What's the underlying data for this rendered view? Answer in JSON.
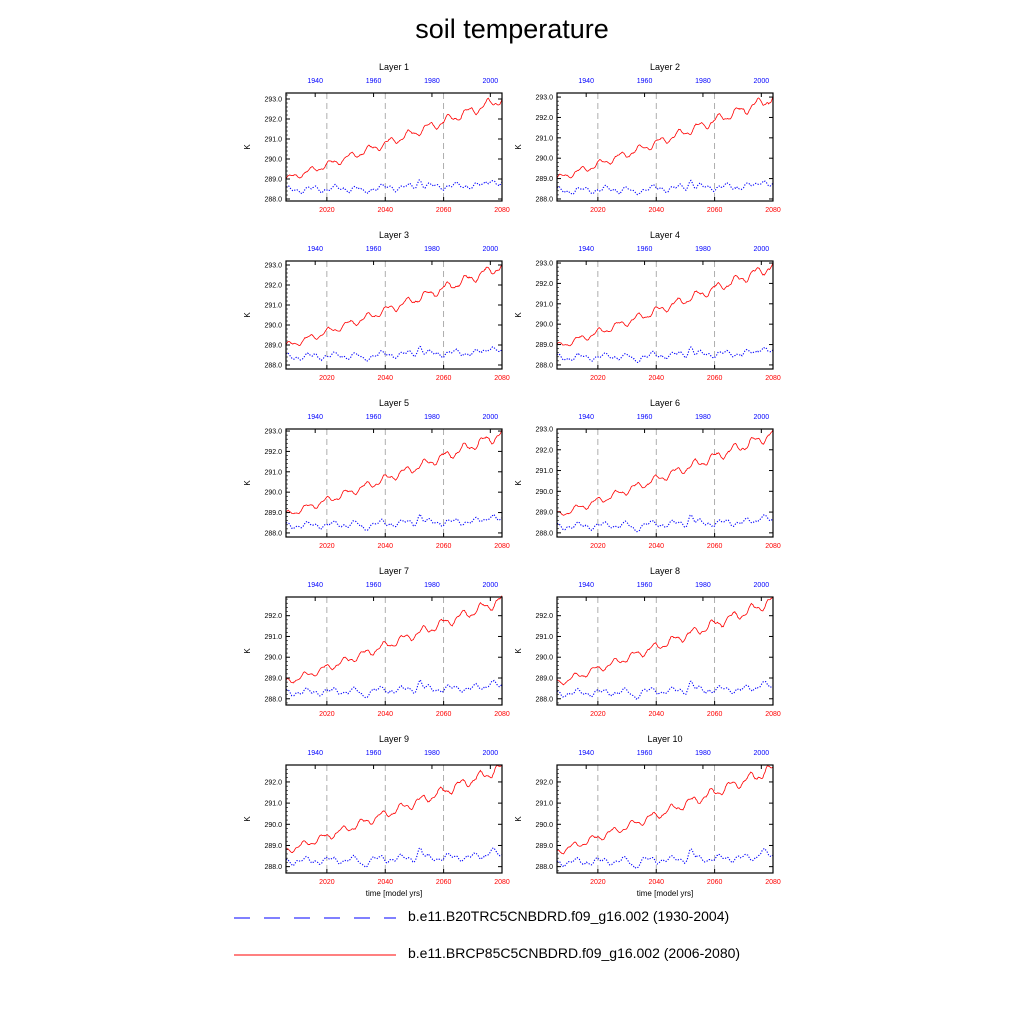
{
  "title": "soil temperature",
  "colors": {
    "historical": "#0000ff",
    "future": "#ff0000",
    "axis": "#000000",
    "refline": "#9a9a9a"
  },
  "chart_data": {
    "type": "line",
    "ylabel": "K",
    "xlabel_bottom": "time [model yrs]",
    "bottom_axis": {
      "range": [
        2006,
        2080
      ],
      "ticks": [
        2020,
        2040,
        2060,
        2080
      ],
      "color": "#ff0000"
    },
    "top_axis": {
      "range": [
        1930,
        2004
      ],
      "ticks": [
        1940,
        1960,
        1980,
        2000
      ],
      "color": "#0000ff"
    },
    "reference_lines_x": [
      2020,
      2040,
      2060
    ],
    "legend": [
      {
        "label": "b.e11.B20TRC5CNBDRD.f09_g16.002 (1930-2004)",
        "style": "dashed",
        "color": "#0000ff"
      },
      {
        "label": "b.e11.BRCP85C5CNBDRD.f09_g16.002 (2006-2080)",
        "style": "solid",
        "color": "#ff0000"
      }
    ],
    "panels": [
      {
        "title": "Layer 1",
        "ylim": [
          287.9,
          293.3
        ],
        "yticks": [
          288.0,
          289.0,
          290.0,
          291.0,
          292.0,
          293.0
        ],
        "ytick_labels": [
          "288.0",
          "289.0",
          "290.0",
          "291.0",
          "292.0",
          "293.0"
        ],
        "future_start": 289.0,
        "future_end": 293.0,
        "hist_base": 288.45
      },
      {
        "title": "Layer 2",
        "ylim": [
          287.9,
          293.2
        ],
        "yticks": [
          288.0,
          289.0,
          290.0,
          291.0,
          292.0,
          293.0
        ],
        "ytick_labels": [
          "288.0",
          "289.0",
          "290.0",
          "291.0",
          "292.0",
          "293.0"
        ],
        "future_start": 289.0,
        "future_end": 292.95,
        "hist_base": 288.4
      },
      {
        "title": "Layer 3",
        "ylim": [
          287.8,
          293.2
        ],
        "yticks": [
          288.0,
          289.0,
          290.0,
          291.0,
          292.0,
          293.0
        ],
        "ytick_labels": [
          "288.0",
          "289.0",
          "290.0",
          "291.0",
          "292.0",
          "293.0"
        ],
        "future_start": 288.95,
        "future_end": 292.95,
        "hist_base": 288.4
      },
      {
        "title": "Layer 4",
        "ylim": [
          287.8,
          293.1
        ],
        "yticks": [
          288.0,
          289.0,
          290.0,
          291.0,
          292.0,
          293.0
        ],
        "ytick_labels": [
          "288.0",
          "289.0",
          "290.0",
          "291.0",
          "292.0",
          "293.0"
        ],
        "future_start": 288.9,
        "future_end": 292.85,
        "hist_base": 288.35
      },
      {
        "title": "Layer 5",
        "ylim": [
          287.8,
          293.1
        ],
        "yticks": [
          288.0,
          289.0,
          290.0,
          291.0,
          292.0,
          293.0
        ],
        "ytick_labels": [
          "288.0",
          "289.0",
          "290.0",
          "291.0",
          "292.0",
          "293.0"
        ],
        "future_start": 288.9,
        "future_end": 292.85,
        "hist_base": 288.35
      },
      {
        "title": "Layer 6",
        "ylim": [
          287.8,
          293.0
        ],
        "yticks": [
          288.0,
          289.0,
          290.0,
          291.0,
          292.0,
          293.0
        ],
        "ytick_labels": [
          "288.0",
          "289.0",
          "290.0",
          "291.0",
          "292.0",
          "293.0"
        ],
        "future_start": 288.85,
        "future_end": 292.75,
        "hist_base": 288.3
      },
      {
        "title": "Layer 7",
        "ylim": [
          287.7,
          292.9
        ],
        "yticks": [
          288.0,
          289.0,
          290.0,
          291.0,
          292.0
        ],
        "ytick_labels": [
          "288.0",
          "289.0",
          "290.0",
          "291.0",
          "292.0"
        ],
        "future_start": 288.8,
        "future_end": 292.75,
        "hist_base": 288.3
      },
      {
        "title": "Layer 8",
        "ylim": [
          287.7,
          292.9
        ],
        "yticks": [
          288.0,
          289.0,
          290.0,
          291.0,
          292.0
        ],
        "ytick_labels": [
          "288.0",
          "289.0",
          "290.0",
          "291.0",
          "292.0"
        ],
        "future_start": 288.75,
        "future_end": 292.7,
        "hist_base": 288.25
      },
      {
        "title": "Layer 9",
        "ylim": [
          287.7,
          292.8
        ],
        "yticks": [
          288.0,
          289.0,
          290.0,
          291.0,
          292.0
        ],
        "ytick_labels": [
          "288.0",
          "289.0",
          "290.0",
          "291.0",
          "292.0"
        ],
        "future_start": 288.75,
        "future_end": 292.65,
        "hist_base": 288.25
      },
      {
        "title": "Layer 10",
        "ylim": [
          287.7,
          292.8
        ],
        "yticks": [
          288.0,
          289.0,
          290.0,
          291.0,
          292.0
        ],
        "ytick_labels": [
          "288.0",
          "289.0",
          "290.0",
          "291.0",
          "292.0"
        ],
        "future_start": 288.7,
        "future_end": 292.6,
        "hist_base": 288.2
      }
    ]
  }
}
